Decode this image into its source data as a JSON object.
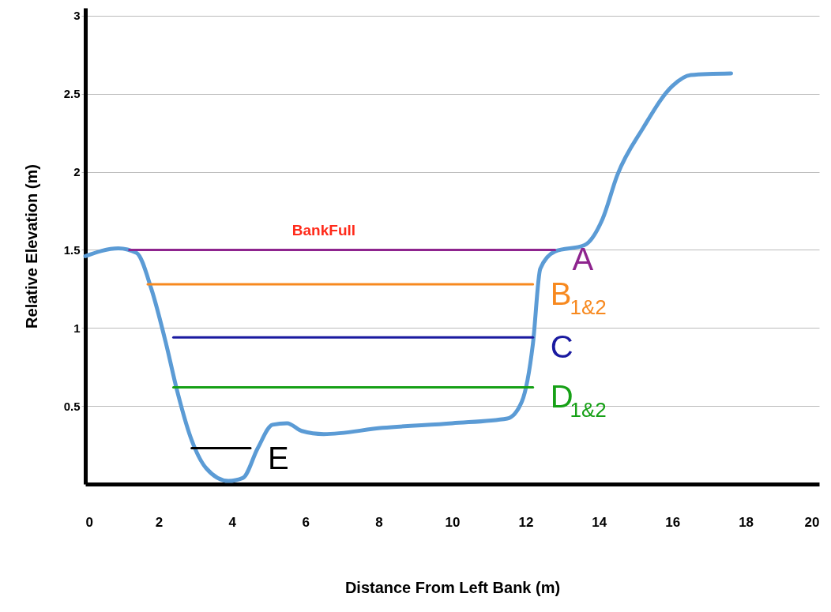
{
  "chart_data": {
    "type": "line",
    "xlabel": "Distance From Left Bank (m)",
    "ylabel": "Relative Elevation (m)",
    "xlim": [
      0,
      20
    ],
    "ylim": [
      0,
      3.05
    ],
    "xticks": [
      0,
      2,
      4,
      6,
      8,
      10,
      12,
      14,
      16,
      18,
      20
    ],
    "yticks": [
      0.5,
      1,
      1.5,
      2,
      2.5,
      3
    ],
    "grid": "y",
    "series": [
      {
        "color": "#5b9bd5",
        "x": [
          0,
          0.9,
          1.4,
          1.8,
          2.2,
          2.5,
          2.9,
          3.3,
          3.9,
          4.3,
          4.7,
          5.1,
          5.5,
          5.9,
          6.5,
          8.1,
          10,
          11.5,
          11.9,
          12.2,
          12.4,
          12.8,
          13.6,
          14.1,
          14.5,
          15.2,
          16,
          16.5,
          17.6
        ],
        "values": [
          1.46,
          1.51,
          1.48,
          1.25,
          0.9,
          0.6,
          0.28,
          0.1,
          0.02,
          0.04,
          0.23,
          0.38,
          0.39,
          0.34,
          0.32,
          0.36,
          0.39,
          0.42,
          0.53,
          0.9,
          1.38,
          1.49,
          1.53,
          1.7,
          1.98,
          2.28,
          2.55,
          2.62,
          2.63
        ]
      },
      {
        "name": "A",
        "color": "#8e248e",
        "x": [
          1.2,
          12.8
        ],
        "values": [
          1.5,
          1.5
        ]
      },
      {
        "name": "B$_{1&2}$",
        "color": "#f7891f",
        "x": [
          1.7,
          12.2
        ],
        "values": [
          1.28,
          1.28
        ]
      },
      {
        "name": "C",
        "color": "#1a1aa0",
        "x": [
          2.4,
          12.2
        ],
        "values": [
          0.94,
          0.94
        ]
      },
      {
        "name": "D$_{1&2}$",
        "color": "#16a016",
        "x": [
          2.4,
          12.2
        ],
        "values": [
          0.62,
          0.62
        ]
      },
      {
        "name": "E",
        "color": "#000000",
        "x": [
          2.9,
          4.5
        ],
        "values": [
          0.23,
          0.23
        ]
      }
    ],
    "annotations": [
      {
        "text": "BankFull",
        "x": 6.5,
        "y": 1.5
      }
    ]
  }
}
